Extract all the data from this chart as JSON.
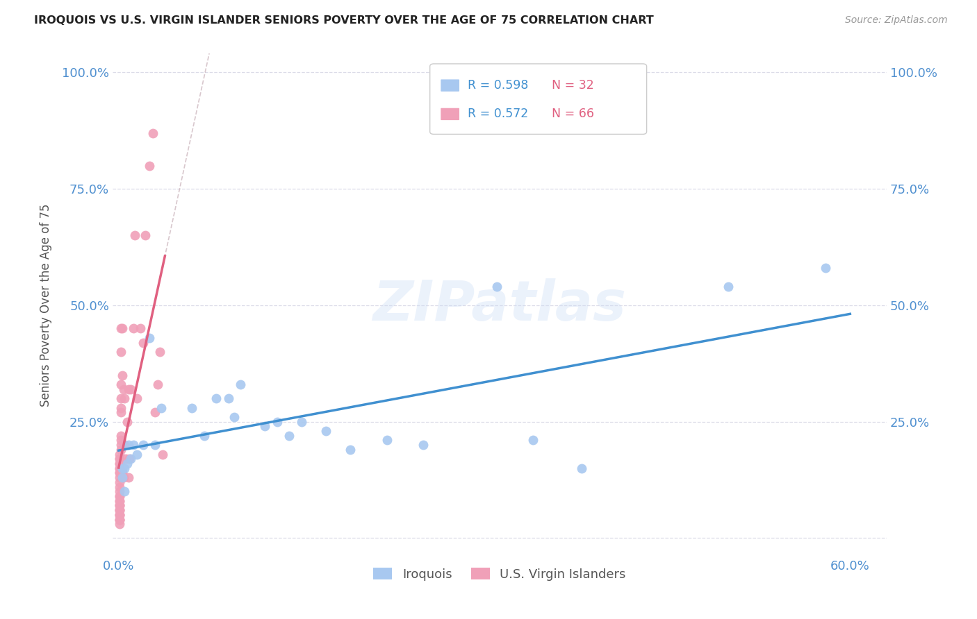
{
  "title": "IROQUOIS VS U.S. VIRGIN ISLANDER SENIORS POVERTY OVER THE AGE OF 75 CORRELATION CHART",
  "source": "Source: ZipAtlas.com",
  "ylabel": "Seniors Poverty Over the Age of 75",
  "xlim": [
    -0.005,
    0.63
  ],
  "ylim": [
    -0.04,
    1.04
  ],
  "iroquois_color": "#a8c8f0",
  "usvi_color": "#f0a0b8",
  "iroquois_line_color": "#4090d0",
  "usvi_line_color": "#e06080",
  "usvi_dash_color": "#c8b0b8",
  "iroquois_R": "0.598",
  "iroquois_N": "32",
  "usvi_R": "0.572",
  "usvi_N": "66",
  "watermark": "ZIPatlas",
  "background_color": "#ffffff",
  "grid_color": "#dcdce8",
  "title_color": "#222222",
  "axis_tick_color": "#5090d0",
  "legend_box_color": "#ccddee",
  "iroquois_x": [
    0.003,
    0.003,
    0.005,
    0.005,
    0.007,
    0.008,
    0.01,
    0.012,
    0.015,
    0.02,
    0.025,
    0.03,
    0.035,
    0.06,
    0.07,
    0.08,
    0.09,
    0.095,
    0.1,
    0.12,
    0.13,
    0.14,
    0.15,
    0.17,
    0.19,
    0.22,
    0.25,
    0.31,
    0.34,
    0.38,
    0.5,
    0.58
  ],
  "iroquois_y": [
    0.13,
    0.15,
    0.15,
    0.1,
    0.16,
    0.2,
    0.17,
    0.2,
    0.18,
    0.2,
    0.43,
    0.2,
    0.28,
    0.28,
    0.22,
    0.3,
    0.3,
    0.26,
    0.33,
    0.24,
    0.25,
    0.22,
    0.25,
    0.23,
    0.19,
    0.21,
    0.2,
    0.54,
    0.21,
    0.15,
    0.54,
    0.58
  ],
  "usvi_x": [
    0.001,
    0.001,
    0.001,
    0.001,
    0.001,
    0.001,
    0.001,
    0.001,
    0.001,
    0.001,
    0.001,
    0.001,
    0.001,
    0.001,
    0.001,
    0.001,
    0.001,
    0.001,
    0.001,
    0.001,
    0.001,
    0.001,
    0.001,
    0.001,
    0.001,
    0.001,
    0.001,
    0.001,
    0.001,
    0.001,
    0.002,
    0.002,
    0.002,
    0.002,
    0.002,
    0.002,
    0.002,
    0.002,
    0.002,
    0.002,
    0.003,
    0.003,
    0.003,
    0.003,
    0.004,
    0.004,
    0.005,
    0.005,
    0.006,
    0.007,
    0.008,
    0.008,
    0.009,
    0.01,
    0.012,
    0.013,
    0.015,
    0.018,
    0.02,
    0.022,
    0.025,
    0.028,
    0.03,
    0.032,
    0.034,
    0.036
  ],
  "usvi_y": [
    0.03,
    0.04,
    0.04,
    0.05,
    0.06,
    0.07,
    0.08,
    0.09,
    0.1,
    0.11,
    0.12,
    0.13,
    0.14,
    0.15,
    0.16,
    0.17,
    0.05,
    0.06,
    0.07,
    0.08,
    0.09,
    0.04,
    0.05,
    0.06,
    0.07,
    0.14,
    0.15,
    0.16,
    0.17,
    0.18,
    0.19,
    0.2,
    0.21,
    0.22,
    0.27,
    0.28,
    0.3,
    0.33,
    0.4,
    0.45,
    0.13,
    0.14,
    0.35,
    0.45,
    0.13,
    0.32,
    0.2,
    0.3,
    0.17,
    0.25,
    0.13,
    0.32,
    0.17,
    0.32,
    0.45,
    0.65,
    0.3,
    0.45,
    0.42,
    0.65,
    0.8,
    0.87,
    0.27,
    0.33,
    0.4,
    0.18
  ]
}
